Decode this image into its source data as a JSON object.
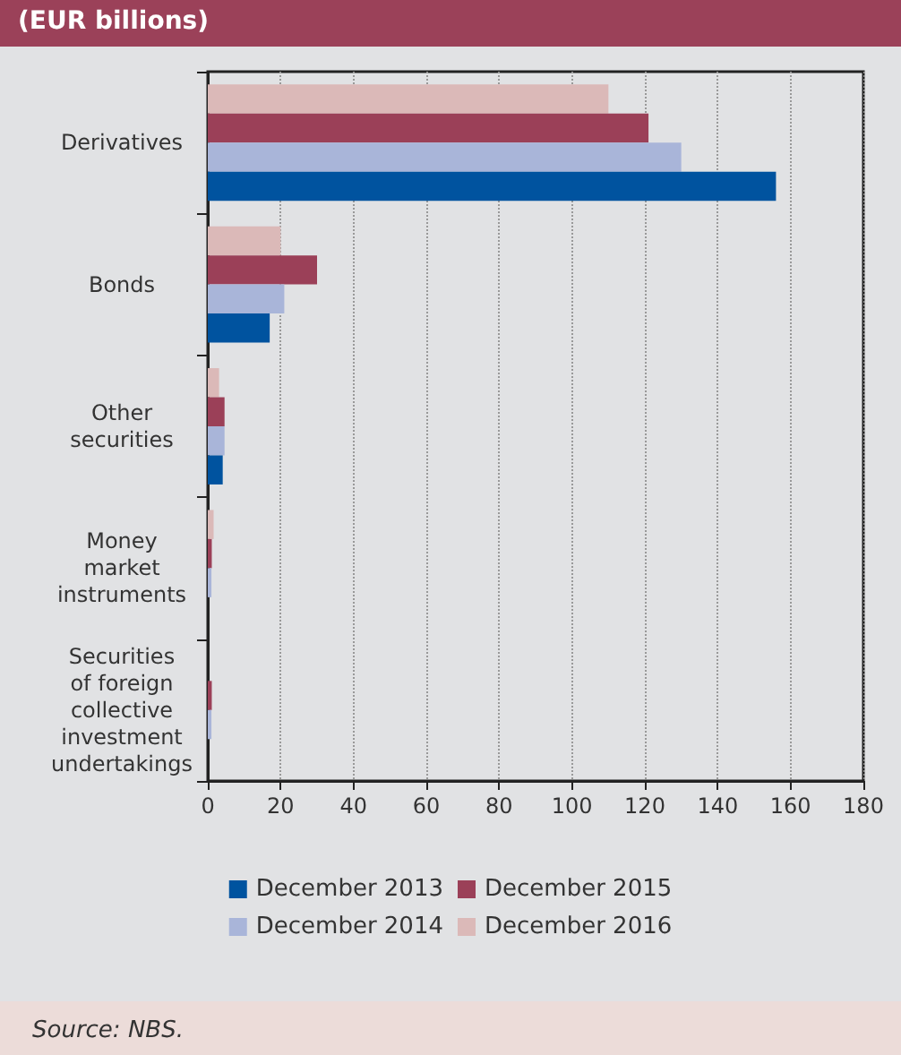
{
  "chart_data": {
    "type": "bar",
    "orientation": "horizontal",
    "title": "(EUR billions)",
    "categories": [
      "Derivatives",
      "Bonds",
      "Other\nsecurities",
      "Money\nmarket\ninstruments",
      "Securities\nof foreign\ncollective\ninvestment\nundertakings"
    ],
    "series": [
      {
        "name": "December 2013",
        "color": "#00539f",
        "values": [
          156,
          17,
          4.1,
          0,
          0
        ]
      },
      {
        "name": "December 2014",
        "color": "#a9b5d9",
        "values": [
          130,
          21,
          4.6,
          1.0,
          1.0
        ]
      },
      {
        "name": "December 2015",
        "color": "#9b4058",
        "values": [
          121,
          30,
          4.6,
          1.1,
          1.1
        ]
      },
      {
        "name": "December 2016",
        "color": "#dbb9b8",
        "values": [
          110,
          20,
          3.1,
          1.6,
          0
        ]
      }
    ],
    "xlim": [
      0,
      180
    ],
    "xticks": [
      0,
      20,
      40,
      60,
      80,
      100,
      120,
      140,
      160,
      180
    ],
    "grid": "x",
    "legend": "bottom",
    "annotations": [
      "Source: NBS."
    ]
  }
}
